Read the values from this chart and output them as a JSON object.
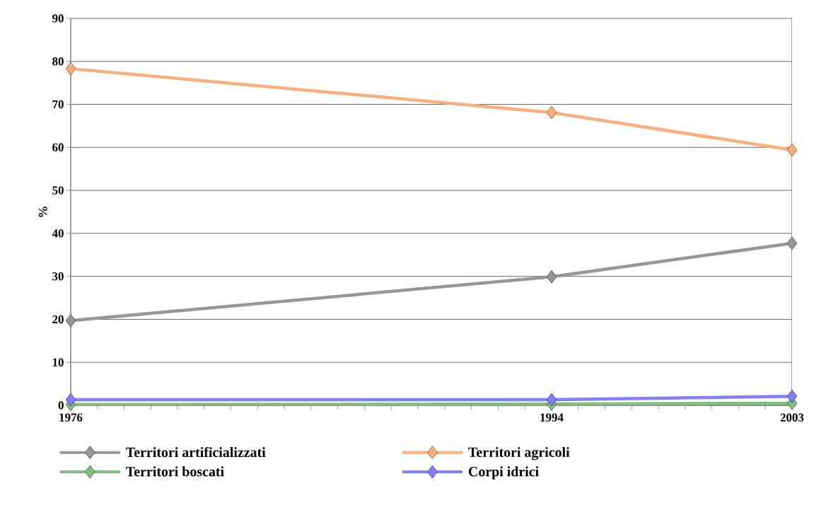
{
  "chart_data": {
    "type": "line",
    "ylabel": "%",
    "x": [
      1976,
      1994,
      2003
    ],
    "xlim": [
      1976,
      2003
    ],
    "xticks": [
      1976,
      1994,
      2003
    ],
    "ylim": [
      0,
      90
    ],
    "yticks": [
      0,
      10,
      20,
      30,
      40,
      50,
      60,
      70,
      80,
      90
    ],
    "grid": "y",
    "legend": "bottom",
    "marker": "diamond",
    "line_style": "solid",
    "series": [
      {
        "name": "Territori artificializzati",
        "color": "#969696",
        "values": [
          19.7,
          29.9,
          37.7
        ]
      },
      {
        "name": "Territori agricoli",
        "color": "#fdad79",
        "values": [
          78.3,
          68.1,
          59.4
        ]
      },
      {
        "name": "Territori boscati",
        "color": "#7fbf7f",
        "values": [
          0.2,
          0.3,
          0.5
        ]
      },
      {
        "name": "Corpi idrici",
        "color": "#7f7fff",
        "values": [
          1.3,
          1.3,
          2.1
        ]
      }
    ]
  }
}
